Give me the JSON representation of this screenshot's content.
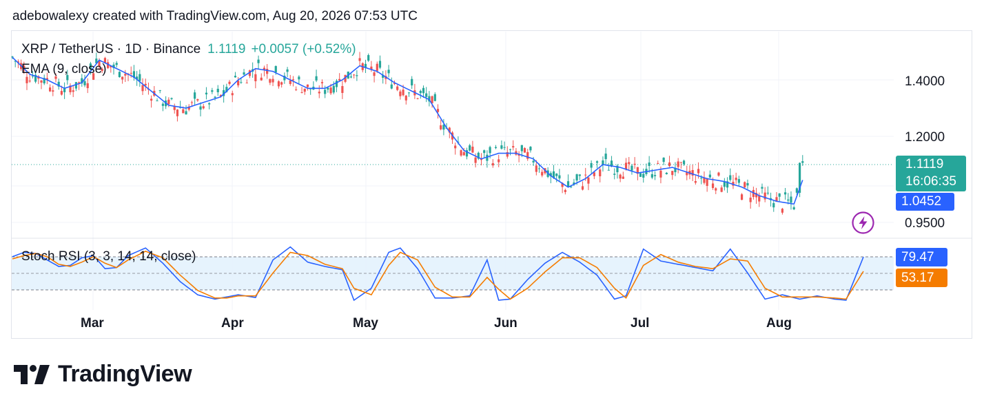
{
  "header": {
    "caption": "adebowalexy created with TradingView.com, Aug 20, 2026 07:53 UTC"
  },
  "legend": {
    "symbol": "XRP / TetherUS · 1D · Binance",
    "last": "1.1119",
    "change": "+0.0057 (+0.52%)",
    "ema": "EMA (9, close)",
    "stoch": "Stoch RSI (3, 3, 14, 14, close)"
  },
  "badges": {
    "price": "1.1119",
    "countdown": "16:06:35",
    "ema": "1.0452",
    "k": "79.47",
    "d": "53.17"
  },
  "brand": {
    "name": "TradingView"
  },
  "colors": {
    "up": "#26a69a",
    "down": "#ef5350",
    "ema": "#2962ff",
    "k_line": "#2962ff",
    "d_line": "#f57c00",
    "stoch_band": "#e3f2fd"
  },
  "chart_data": [
    {
      "type": "candlestick",
      "title": "XRP / TetherUS · 1D · Binance",
      "price_axis_ticks": [
        "1.4000",
        "1.2000",
        "0.9500"
      ],
      "x_tick_labels": [
        "Mar",
        "Apr",
        "May",
        "Jun",
        "Jul",
        "Aug"
      ],
      "last_price": 1.1119,
      "ema_value": 1.0452,
      "series": [
        {
          "name": "EMA (9, close)",
          "anchors": [
            [
              0,
              1.48
            ],
            [
              6,
              1.42
            ],
            [
              12,
              1.4
            ],
            [
              18,
              1.37
            ],
            [
              24,
              1.39
            ],
            [
              30,
              1.47
            ],
            [
              36,
              1.44
            ],
            [
              42,
              1.41
            ],
            [
              48,
              1.36
            ],
            [
              54,
              1.31
            ],
            [
              60,
              1.3
            ],
            [
              66,
              1.32
            ],
            [
              72,
              1.34
            ],
            [
              78,
              1.4
            ],
            [
              84,
              1.44
            ],
            [
              90,
              1.43
            ],
            [
              96,
              1.4
            ],
            [
              102,
              1.37
            ],
            [
              108,
              1.37
            ],
            [
              114,
              1.4
            ],
            [
              120,
              1.45
            ],
            [
              126,
              1.43
            ],
            [
              132,
              1.39
            ],
            [
              138,
              1.36
            ],
            [
              144,
              1.33
            ],
            [
              150,
              1.23
            ],
            [
              156,
              1.15
            ],
            [
              162,
              1.12
            ],
            [
              168,
              1.14
            ],
            [
              174,
              1.14
            ],
            [
              180,
              1.12
            ],
            [
              186,
              1.06
            ],
            [
              192,
              1.02
            ],
            [
              198,
              1.05
            ],
            [
              204,
              1.1
            ],
            [
              210,
              1.09
            ],
            [
              216,
              1.07
            ],
            [
              222,
              1.08
            ],
            [
              228,
              1.09
            ],
            [
              234,
              1.07
            ],
            [
              240,
              1.05
            ],
            [
              246,
              1.04
            ],
            [
              252,
              1.02
            ],
            [
              258,
              0.99
            ],
            [
              264,
              0.97
            ],
            [
              270,
              0.96
            ],
            [
              273,
              1.0452
            ]
          ]
        }
      ]
    },
    {
      "type": "line",
      "title": "Stoch RSI (3, 3, 14, 14, close)",
      "ylim": [
        0,
        100
      ],
      "series": [
        {
          "name": "K",
          "anchors": [
            [
              0,
              80
            ],
            [
              4,
              88
            ],
            [
              8,
              86
            ],
            [
              12,
              74
            ],
            [
              16,
              62
            ],
            [
              20,
              64
            ],
            [
              24,
              78
            ],
            [
              28,
              82
            ],
            [
              32,
              58
            ],
            [
              36,
              60
            ],
            [
              40,
              82
            ],
            [
              46,
              96
            ],
            [
              52,
              68
            ],
            [
              58,
              34
            ],
            [
              64,
              10
            ],
            [
              70,
              2
            ],
            [
              74,
              6
            ],
            [
              78,
              10
            ],
            [
              84,
              5
            ],
            [
              90,
              74
            ],
            [
              96,
              98
            ],
            [
              102,
              70
            ],
            [
              108,
              62
            ],
            [
              114,
              56
            ],
            [
              118,
              0
            ],
            [
              124,
              22
            ],
            [
              130,
              88
            ],
            [
              134,
              96
            ],
            [
              140,
              58
            ],
            [
              146,
              4
            ],
            [
              152,
              4
            ],
            [
              158,
              8
            ],
            [
              164,
              74
            ],
            [
              168,
              0
            ],
            [
              172,
              2
            ],
            [
              178,
              38
            ],
            [
              184,
              68
            ],
            [
              190,
              88
            ],
            [
              196,
              70
            ],
            [
              202,
              46
            ],
            [
              208,
              2
            ],
            [
              212,
              8
            ],
            [
              218,
              94
            ],
            [
              224,
              72
            ],
            [
              230,
              66
            ],
            [
              236,
              60
            ],
            [
              242,
              54
            ],
            [
              248,
              94
            ],
            [
              254,
              50
            ],
            [
              260,
              2
            ],
            [
              266,
              10
            ],
            [
              272,
              2
            ],
            [
              278,
              8
            ],
            [
              284,
              2
            ],
            [
              288,
              0
            ],
            [
              294,
              79.47
            ]
          ]
        },
        {
          "name": "D",
          "anchors": [
            [
              0,
              76
            ],
            [
              4,
              82
            ],
            [
              8,
              86
            ],
            [
              12,
              80
            ],
            [
              16,
              66
            ],
            [
              20,
              62
            ],
            [
              24,
              70
            ],
            [
              28,
              80
            ],
            [
              32,
              68
            ],
            [
              36,
              60
            ],
            [
              40,
              74
            ],
            [
              46,
              90
            ],
            [
              52,
              78
            ],
            [
              58,
              46
            ],
            [
              64,
              18
            ],
            [
              70,
              4
            ],
            [
              74,
              4
            ],
            [
              78,
              8
            ],
            [
              84,
              8
            ],
            [
              90,
              50
            ],
            [
              96,
              88
            ],
            [
              102,
              82
            ],
            [
              108,
              66
            ],
            [
              114,
              58
            ],
            [
              118,
              22
            ],
            [
              124,
              10
            ],
            [
              130,
              64
            ],
            [
              134,
              88
            ],
            [
              140,
              74
            ],
            [
              146,
              24
            ],
            [
              152,
              6
            ],
            [
              158,
              6
            ],
            [
              164,
              42
            ],
            [
              168,
              20
            ],
            [
              172,
              2
            ],
            [
              178,
              22
            ],
            [
              184,
              52
            ],
            [
              190,
              78
            ],
            [
              196,
              78
            ],
            [
              202,
              60
            ],
            [
              208,
              22
            ],
            [
              212,
              4
            ],
            [
              218,
              64
            ],
            [
              224,
              84
            ],
            [
              230,
              70
            ],
            [
              236,
              62
            ],
            [
              242,
              58
            ],
            [
              248,
              76
            ],
            [
              254,
              72
            ],
            [
              260,
              22
            ],
            [
              266,
              6
            ],
            [
              272,
              6
            ],
            [
              278,
              6
            ],
            [
              284,
              4
            ],
            [
              288,
              2
            ],
            [
              294,
              53.17
            ]
          ]
        }
      ]
    }
  ]
}
